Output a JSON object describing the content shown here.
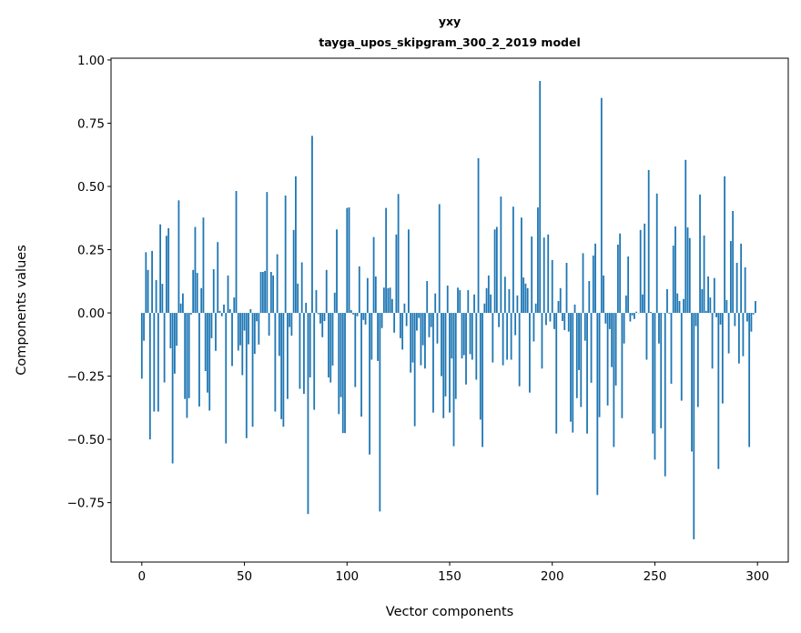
{
  "chart_data": {
    "type": "bar",
    "title": "yxy",
    "subtitle": "tayga_upos_skipgram_300_2_2019 model",
    "xlabel": "Vector components",
    "ylabel": "Components values",
    "xlim": [
      -15,
      315
    ],
    "ylim": [
      -0.985,
      1.007
    ],
    "xticks": [
      0,
      50,
      100,
      150,
      200,
      250,
      300
    ],
    "xtick_labels": [
      "0",
      "50",
      "100",
      "150",
      "200",
      "250",
      "300"
    ],
    "yticks": [
      -0.75,
      -0.5,
      -0.25,
      0.0,
      0.25,
      0.5,
      0.75,
      1.0
    ],
    "ytick_labels": [
      "−0.75",
      "−0.50",
      "−0.25",
      "0.00",
      "0.25",
      "0.50",
      "0.75",
      "1.00"
    ],
    "grid": false,
    "bar_color": "#1f77b4",
    "values": [
      -0.26,
      -0.11,
      0.24,
      0.17,
      -0.5,
      0.245,
      -0.39,
      0.13,
      -0.39,
      0.35,
      0.115,
      -0.275,
      0.305,
      0.335,
      -0.14,
      -0.595,
      -0.24,
      -0.13,
      0.445,
      0.037,
      0.077,
      -0.34,
      -0.415,
      -0.337,
      -0.006,
      0.17,
      0.34,
      0.158,
      -0.37,
      0.098,
      0.377,
      -0.23,
      -0.315,
      -0.386,
      -0.1,
      0.173,
      -0.15,
      0.28,
      0.008,
      -0.013,
      0.033,
      -0.516,
      0.148,
      0.015,
      -0.21,
      0.061,
      0.482,
      -0.149,
      -0.128,
      -0.246,
      -0.07,
      -0.495,
      -0.124,
      0.015,
      -0.45,
      -0.162,
      -0.033,
      -0.125,
      0.162,
      0.162,
      0.166,
      0.478,
      -0.09,
      0.162,
      0.148,
      -0.39,
      0.232,
      -0.17,
      -0.42,
      -0.45,
      0.464,
      -0.34,
      -0.056,
      -0.09,
      0.328,
      0.54,
      0.116,
      -0.3,
      0.2,
      -0.32,
      0.04,
      -0.795,
      -0.255,
      0.7,
      -0.383,
      0.09,
      -0.005,
      -0.042,
      -0.096,
      -0.032,
      0.17,
      -0.255,
      -0.275,
      -0.208,
      0.08,
      0.33,
      -0.4,
      -0.333,
      -0.475,
      -0.475,
      0.415,
      0.417,
      0.011,
      -0.006,
      -0.293,
      -0.013,
      0.184,
      -0.41,
      -0.028,
      -0.046,
      0.138,
      -0.56,
      -0.185,
      0.3,
      0.144,
      -0.19,
      -0.785,
      -0.06,
      0.1,
      0.415,
      0.098,
      0.1,
      0.055,
      -0.078,
      0.31,
      0.47,
      -0.1,
      -0.145,
      0.037,
      -0.052,
      0.33,
      -0.236,
      -0.196,
      -0.448,
      -0.07,
      -0.02,
      -0.207,
      -0.128,
      -0.22,
      0.126,
      -0.096,
      -0.056,
      -0.394,
      0.077,
      -0.121,
      0.43,
      -0.25,
      -0.416,
      -0.33,
      0.108,
      -0.394,
      -0.18,
      -0.527,
      -0.34,
      0.1,
      0.09,
      -0.18,
      -0.167,
      -0.283,
      0.09,
      -0.163,
      -0.185,
      0.073,
      -0.264,
      0.612,
      -0.422,
      -0.53,
      0.037,
      0.098,
      0.148,
      0.073,
      -0.196,
      0.33,
      0.34,
      -0.056,
      0.46,
      -0.207,
      0.143,
      -0.185,
      0.094,
      -0.185,
      0.42,
      -0.088,
      0.069,
      -0.29,
      0.377,
      0.14,
      0.116,
      0.098,
      -0.315,
      0.302,
      -0.113,
      0.037,
      0.417,
      0.917,
      -0.22,
      0.298,
      -0.048,
      0.31,
      -0.034,
      0.209,
      -0.064,
      -0.477,
      0.047,
      0.098,
      -0.032,
      -0.068,
      0.198,
      -0.074,
      -0.43,
      -0.473,
      0.033,
      -0.337,
      -0.226,
      -0.372,
      0.236,
      -0.11,
      -0.477,
      0.126,
      -0.276,
      0.227,
      0.274,
      -0.72,
      -0.412,
      0.85,
      0.148,
      -0.042,
      -0.366,
      -0.064,
      -0.214,
      -0.53,
      -0.287,
      0.27,
      0.314,
      -0.416,
      -0.121,
      0.069,
      0.223,
      -0.034,
      -0.01,
      -0.024,
      0.005,
      0.0,
      0.328,
      0.073,
      0.353,
      -0.185,
      0.565,
      0.004,
      -0.477,
      -0.58,
      0.472,
      -0.121,
      -0.456,
      0.0,
      -0.646,
      0.094,
      -0.003,
      -0.28,
      0.266,
      0.342,
      0.077,
      0.047,
      -0.347,
      0.055,
      0.605,
      0.338,
      0.296,
      -0.548,
      -0.895,
      -0.052,
      -0.372,
      0.468,
      0.094,
      0.306,
      0.008,
      0.144,
      0.061,
      -0.22,
      0.138,
      -0.017,
      -0.617,
      -0.046,
      -0.358,
      0.54,
      0.051,
      -0.16,
      0.284,
      0.403,
      -0.052,
      0.198,
      -0.2,
      0.274,
      -0.171,
      0.18,
      -0.034,
      -0.53,
      -0.074,
      -0.006,
      0.047
    ]
  }
}
